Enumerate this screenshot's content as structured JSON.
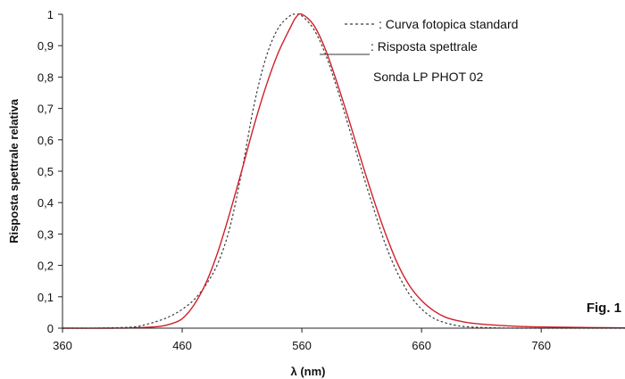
{
  "chart_data": {
    "type": "line",
    "xlabel": "λ (nm)",
    "ylabel": "Risposta spettrale relativa",
    "xlim": [
      360,
      830
    ],
    "ylim": [
      0,
      1
    ],
    "x_ticks": [
      360,
      460,
      560,
      660,
      760
    ],
    "x_tick_labels": [
      "360",
      "460",
      "560",
      "660",
      "760"
    ],
    "y_ticks": [
      0,
      0.1,
      0.2,
      0.3,
      0.4,
      0.5,
      0.6,
      0.7,
      0.8,
      0.9,
      1
    ],
    "y_tick_labels": [
      "0",
      "0,1",
      "0,2",
      "0,3",
      "0,4",
      "0,5",
      "0,6",
      "0,7",
      "0,8",
      "0,9",
      "1"
    ],
    "grid": false,
    "legend_position": "top-right",
    "legend_entries": [
      ": Curva fotopica standard",
      ": Risposta spettrale",
      "Sonda LP PHOT 02"
    ],
    "annotation": "Fig. 1",
    "series": [
      {
        "name": "Curva fotopica standard",
        "style": "dashed",
        "color": "#3a3a3a",
        "x": [
          360,
          380,
          400,
          420,
          430,
          440,
          450,
          460,
          470,
          480,
          490,
          500,
          510,
          520,
          530,
          540,
          550,
          555,
          560,
          570,
          580,
          590,
          600,
          610,
          620,
          630,
          640,
          650,
          660,
          670,
          680,
          690,
          700,
          720,
          740,
          760,
          780,
          800,
          830
        ],
        "y": [
          0,
          0,
          0.001,
          0.004,
          0.012,
          0.023,
          0.038,
          0.06,
          0.091,
          0.139,
          0.208,
          0.323,
          0.503,
          0.71,
          0.862,
          0.954,
          0.995,
          1,
          0.995,
          0.952,
          0.87,
          0.757,
          0.631,
          0.503,
          0.381,
          0.265,
          0.175,
          0.107,
          0.061,
          0.032,
          0.017,
          0.008,
          0.004,
          0.001,
          0,
          0,
          0,
          0,
          0
        ]
      },
      {
        "name": "Risposta spettrale",
        "style": "solid",
        "color": "#d0202a",
        "x": [
          360,
          400,
          420,
          440,
          450,
          460,
          470,
          480,
          490,
          500,
          510,
          520,
          530,
          540,
          550,
          555,
          560,
          570,
          580,
          590,
          600,
          610,
          620,
          630,
          640,
          650,
          660,
          670,
          680,
          690,
          700,
          720,
          740,
          760,
          780,
          800,
          830
        ],
        "y": [
          0,
          0,
          0.001,
          0.005,
          0.013,
          0.03,
          0.075,
          0.145,
          0.245,
          0.37,
          0.505,
          0.645,
          0.77,
          0.875,
          0.955,
          0.99,
          1,
          0.965,
          0.885,
          0.775,
          0.655,
          0.53,
          0.41,
          0.3,
          0.205,
          0.135,
          0.088,
          0.056,
          0.035,
          0.024,
          0.017,
          0.01,
          0.006,
          0.004,
          0.003,
          0.002,
          0.001
        ]
      }
    ]
  }
}
